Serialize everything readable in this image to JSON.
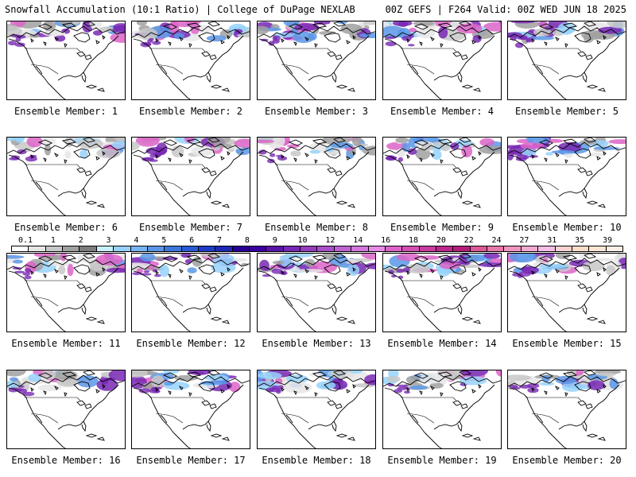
{
  "header": {
    "left": "Snowfall Accumulation (10:1 Ratio) | College of DuPage NEXLAB",
    "right": "00Z GEFS | F264 Valid: 00Z WED JUN 18 2025"
  },
  "members": [
    "Ensemble Member: 1",
    "Ensemble Member: 2",
    "Ensemble Member: 3",
    "Ensemble Member: 4",
    "Ensemble Member: 5",
    "Ensemble Member: 6",
    "Ensemble Member: 7",
    "Ensemble Member: 8",
    "Ensemble Member: 9",
    "Ensemble Member: 10",
    "Ensemble Member: 11",
    "Ensemble Member: 12",
    "Ensemble Member: 13",
    "Ensemble Member: 14",
    "Ensemble Member: 15",
    "Ensemble Member: 16",
    "Ensemble Member: 17",
    "Ensemble Member: 18",
    "Ensemble Member: 19",
    "Ensemble Member: 20"
  ],
  "colorbar": {
    "labels": [
      "0.1",
      "1",
      "2",
      "3",
      "4",
      "5",
      "6",
      "7",
      "8",
      "9",
      "10",
      "12",
      "14",
      "16",
      "18",
      "20",
      "22",
      "24",
      "27",
      "31",
      "35",
      "39"
    ],
    "colors": [
      "#ffffff",
      "#e6e6e6",
      "#c8c8c8",
      "#a0a0a0",
      "#7d7d7d",
      "#c8f0ff",
      "#96d2fa",
      "#78b4f0",
      "#5a96e6",
      "#3c78dc",
      "#285ad2",
      "#1e3cc8",
      "#1e28b4",
      "#280096",
      "#3c00a0",
      "#5a14aa",
      "#7828b4",
      "#963cbe",
      "#aa50c8",
      "#be64d2",
      "#d278dc",
      "#e68ce6",
      "#dc64c8",
      "#d250b4",
      "#c83ca0",
      "#be288c",
      "#b41e78",
      "#dc5a96",
      "#e678aa",
      "#f096be",
      "#f0aad2",
      "#f5bee6",
      "#fad2d2",
      "#fadcc8",
      "#fae6d2",
      "#faf0e6"
    ]
  }
}
